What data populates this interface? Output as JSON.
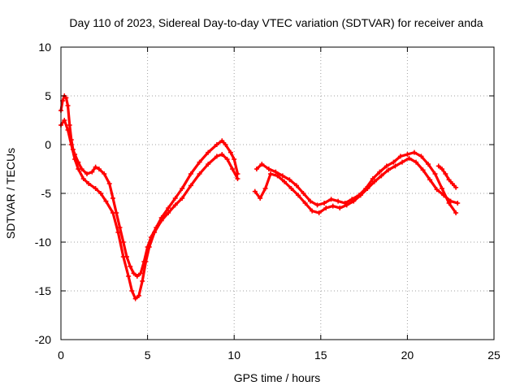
{
  "chart_data": {
    "type": "scatter",
    "title": "Day 110 of 2023, Sidereal Day-to-day VTEC variation (SDTVAR) for receiver anda",
    "xlabel": "GPS time / hours",
    "ylabel": "SDTVAR / TECUs",
    "xlim": [
      0,
      25
    ],
    "ylim": [
      -20,
      10
    ],
    "xticks": [
      "0",
      "5",
      "10",
      "15",
      "20",
      "25"
    ],
    "yticks": [
      "10",
      "5",
      "0",
      "-5",
      "-10",
      "-15",
      "-20"
    ],
    "grid": true,
    "marker": "+",
    "color": "#ff0000",
    "series": [
      {
        "name": "trace-upper",
        "x": [
          0.0,
          0.1,
          0.2,
          0.3,
          0.4,
          0.5,
          0.6,
          0.7,
          0.8,
          1.0,
          1.2,
          1.5,
          1.8,
          2.0,
          2.2,
          2.5,
          2.8,
          3.0,
          3.2,
          3.4,
          3.6,
          3.8,
          4.0,
          4.2,
          4.4,
          4.6,
          4.8,
          5.0,
          5.2,
          5.5,
          5.8,
          6.2,
          6.6,
          7.0,
          7.5,
          8.0,
          8.5,
          9.0,
          9.3,
          9.5,
          9.8,
          10.0,
          10.2
        ],
        "y": [
          3.5,
          4.5,
          5.0,
          4.8,
          4.0,
          2.0,
          0.5,
          -0.5,
          -1.0,
          -1.8,
          -2.5,
          -3.0,
          -2.8,
          -2.3,
          -2.5,
          -3.0,
          -4.0,
          -5.5,
          -7.0,
          -8.5,
          -10.0,
          -11.5,
          -12.5,
          -13.2,
          -13.5,
          -13.2,
          -12.0,
          -10.5,
          -9.5,
          -8.5,
          -7.5,
          -6.5,
          -5.5,
          -4.5,
          -3.0,
          -1.8,
          -0.8,
          0.0,
          0.4,
          0.0,
          -0.8,
          -1.5,
          -3.0
        ]
      },
      {
        "name": "trace-lower",
        "x": [
          0.0,
          0.2,
          0.4,
          0.6,
          0.8,
          1.0,
          1.3,
          1.6,
          2.0,
          2.3,
          2.6,
          3.0,
          3.3,
          3.6,
          3.9,
          4.1,
          4.3,
          4.5,
          4.7,
          4.9,
          5.1,
          5.4,
          5.8,
          6.2,
          6.6,
          7.0,
          7.5,
          8.0,
          8.5,
          9.0,
          9.3,
          9.6,
          9.9,
          10.2
        ],
        "y": [
          2.0,
          2.5,
          1.5,
          0.0,
          -1.5,
          -2.5,
          -3.5,
          -4.0,
          -4.5,
          -5.0,
          -5.8,
          -7.0,
          -9.0,
          -11.5,
          -13.5,
          -15.0,
          -15.8,
          -15.5,
          -14.0,
          -12.0,
          -10.5,
          -9.0,
          -7.8,
          -7.0,
          -6.2,
          -5.5,
          -4.2,
          -3.0,
          -2.0,
          -1.2,
          -1.0,
          -1.5,
          -2.5,
          -3.5
        ]
      },
      {
        "name": "trace-mid-upper",
        "x": [
          11.3,
          11.6,
          12.0,
          12.4,
          12.8,
          13.2,
          13.6,
          14.0,
          14.4,
          14.8,
          15.2,
          15.6,
          16.0,
          16.4,
          16.8,
          17.2,
          17.6,
          18.0,
          18.4,
          18.8,
          19.2,
          19.6,
          20.0,
          20.4,
          20.8,
          21.2,
          21.6,
          22.0,
          22.4,
          22.8
        ],
        "y": [
          -2.5,
          -2.0,
          -2.5,
          -2.8,
          -3.2,
          -3.6,
          -4.2,
          -5.0,
          -5.8,
          -6.2,
          -6.0,
          -5.6,
          -5.8,
          -6.0,
          -5.6,
          -5.2,
          -4.5,
          -3.5,
          -2.8,
          -2.2,
          -1.8,
          -1.2,
          -1.0,
          -0.8,
          -1.2,
          -2.0,
          -3.0,
          -4.5,
          -6.0,
          -7.0
        ]
      },
      {
        "name": "trace-mid-lower",
        "x": [
          11.2,
          11.5,
          11.8,
          12.1,
          12.5,
          12.9,
          13.3,
          13.7,
          14.1,
          14.5,
          14.9,
          15.3,
          15.7,
          16.1,
          16.5,
          16.9,
          17.3,
          17.7,
          18.1,
          18.5,
          18.9,
          19.3,
          19.7,
          20.1,
          20.5,
          20.9,
          21.3,
          21.7,
          22.1,
          22.5,
          22.9
        ],
        "y": [
          -4.8,
          -5.5,
          -4.5,
          -3.0,
          -3.2,
          -3.8,
          -4.5,
          -5.2,
          -6.0,
          -6.8,
          -7.0,
          -6.5,
          -6.3,
          -6.5,
          -6.2,
          -5.8,
          -5.2,
          -4.5,
          -3.8,
          -3.2,
          -2.6,
          -2.2,
          -1.8,
          -1.4,
          -1.8,
          -2.6,
          -3.6,
          -4.6,
          -5.2,
          -5.8,
          -6.0
        ]
      },
      {
        "name": "trace-late-end",
        "x": [
          21.8,
          22.0,
          22.2,
          22.4,
          22.6,
          22.8
        ],
        "y": [
          -2.2,
          -2.5,
          -3.0,
          -3.6,
          -4.0,
          -4.4
        ]
      }
    ]
  }
}
